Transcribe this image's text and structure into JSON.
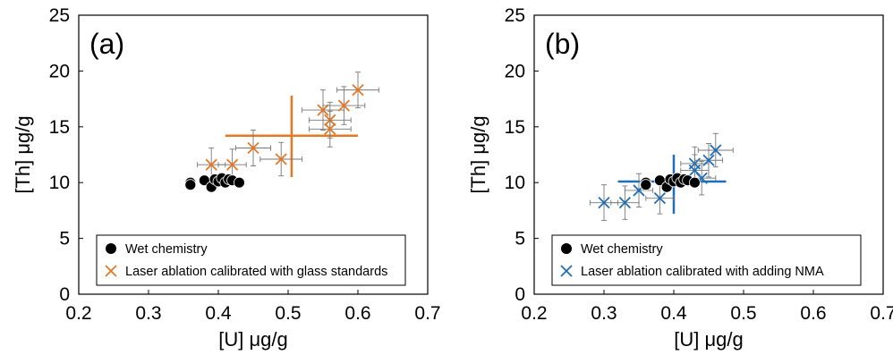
{
  "figure": {
    "panels": [
      {
        "id": "a",
        "label": "(a)",
        "marker": "x",
        "color": "#E87722",
        "legend": [
          "Wet chemistry",
          "Laser ablation calibrated with glass standards"
        ]
      },
      {
        "id": "b",
        "label": "(b)",
        "marker": "x",
        "color": "#1F6FB8",
        "legend": [
          "Wet chemistry",
          "Laser ablation calibrated with adding NMA"
        ]
      }
    ]
  },
  "chart_data": [
    {
      "type": "scatter",
      "panel_label": "(a)",
      "xlabel": "[U] μg/g",
      "ylabel": "[Th] μg/g",
      "xlim": [
        0.2,
        0.7
      ],
      "ylim": [
        0,
        25
      ],
      "x_ticks": [
        "0.2",
        "0.3",
        "0.4",
        "0.5",
        "0.6",
        "0.7"
      ],
      "y_ticks": [
        "0",
        "5",
        "10",
        "15",
        "20",
        "25"
      ],
      "grid": false,
      "legend_position": "bottom",
      "series": [
        {
          "name": "Wet chemistry",
          "marker": "circle",
          "color": "#000000",
          "points": [
            {
              "x": 0.36,
              "y": 10.0
            },
            {
              "x": 0.36,
              "y": 9.8
            },
            {
              "x": 0.38,
              "y": 10.2
            },
            {
              "x": 0.39,
              "y": 9.6
            },
            {
              "x": 0.395,
              "y": 10.3
            },
            {
              "x": 0.4,
              "y": 10.1
            },
            {
              "x": 0.405,
              "y": 10.4
            },
            {
              "x": 0.41,
              "y": 10.0
            },
            {
              "x": 0.415,
              "y": 10.3
            },
            {
              "x": 0.42,
              "y": 10.2
            },
            {
              "x": 0.43,
              "y": 10.0
            }
          ]
        },
        {
          "name": "Laser ablation calibrated with glass standards",
          "marker": "x",
          "color": "#E87722",
          "points": [
            {
              "x": 0.39,
              "y": 11.6,
              "xerr": 0.02,
              "yerr": 1.5
            },
            {
              "x": 0.42,
              "y": 11.6,
              "xerr": 0.02,
              "yerr": 1.4
            },
            {
              "x": 0.45,
              "y": 13.1,
              "xerr": 0.025,
              "yerr": 1.6
            },
            {
              "x": 0.49,
              "y": 12.1,
              "xerr": 0.03,
              "yerr": 1.5
            },
            {
              "x": 0.55,
              "y": 16.5,
              "xerr": 0.03,
              "yerr": 1.8
            },
            {
              "x": 0.56,
              "y": 15.6,
              "xerr": 0.03,
              "yerr": 1.6
            },
            {
              "x": 0.56,
              "y": 14.8,
              "xerr": 0.03,
              "yerr": 1.6
            },
            {
              "x": 0.58,
              "y": 16.9,
              "xerr": 0.03,
              "yerr": 1.7
            },
            {
              "x": 0.6,
              "y": 18.3,
              "xerr": 0.03,
              "yerr": 1.6
            }
          ]
        }
      ],
      "crosshair": {
        "x": 0.505,
        "y": 14.2,
        "x_range": [
          0.41,
          0.6
        ],
        "y_range": [
          10.5,
          17.8
        ],
        "color": "#E87722"
      }
    },
    {
      "type": "scatter",
      "panel_label": "(b)",
      "xlabel": "[U] μg/g",
      "ylabel": "[Th] μg/g",
      "xlim": [
        0.2,
        0.7
      ],
      "ylim": [
        0,
        25
      ],
      "x_ticks": [
        "0.2",
        "0.3",
        "0.4",
        "0.5",
        "0.6",
        "0.7"
      ],
      "y_ticks": [
        "0",
        "5",
        "10",
        "15",
        "20",
        "25"
      ],
      "grid": false,
      "legend_position": "bottom",
      "series": [
        {
          "name": "Wet chemistry",
          "marker": "circle",
          "color": "#000000",
          "points": [
            {
              "x": 0.36,
              "y": 10.0
            },
            {
              "x": 0.36,
              "y": 9.8
            },
            {
              "x": 0.38,
              "y": 10.2
            },
            {
              "x": 0.39,
              "y": 9.6
            },
            {
              "x": 0.395,
              "y": 10.3
            },
            {
              "x": 0.4,
              "y": 10.1
            },
            {
              "x": 0.405,
              "y": 10.4
            },
            {
              "x": 0.41,
              "y": 10.0
            },
            {
              "x": 0.415,
              "y": 10.3
            },
            {
              "x": 0.42,
              "y": 10.2
            },
            {
              "x": 0.43,
              "y": 10.0
            }
          ]
        },
        {
          "name": "Laser ablation calibrated with adding NMA",
          "marker": "x",
          "color": "#1F6FB8",
          "points": [
            {
              "x": 0.3,
              "y": 8.2,
              "xerr": 0.02,
              "yerr": 1.6
            },
            {
              "x": 0.33,
              "y": 8.2,
              "xerr": 0.02,
              "yerr": 1.5
            },
            {
              "x": 0.35,
              "y": 9.3,
              "xerr": 0.02,
              "yerr": 1.5
            },
            {
              "x": 0.38,
              "y": 8.6,
              "xerr": 0.02,
              "yerr": 1.4
            },
            {
              "x": 0.43,
              "y": 11.7,
              "xerr": 0.02,
              "yerr": 1.5
            },
            {
              "x": 0.44,
              "y": 10.4,
              "xerr": 0.02,
              "yerr": 1.5
            },
            {
              "x": 0.45,
              "y": 12.0,
              "xerr": 0.02,
              "yerr": 1.5
            },
            {
              "x": 0.43,
              "y": 11.1,
              "xerr": 0.02,
              "yerr": 1.4
            },
            {
              "x": 0.46,
              "y": 12.9,
              "xerr": 0.025,
              "yerr": 1.5
            }
          ]
        }
      ],
      "crosshair": {
        "x": 0.4,
        "y": 10.1,
        "x_range": [
          0.32,
          0.475
        ],
        "y_range": [
          7.2,
          12.5
        ],
        "color": "#1F6FB8"
      }
    }
  ]
}
